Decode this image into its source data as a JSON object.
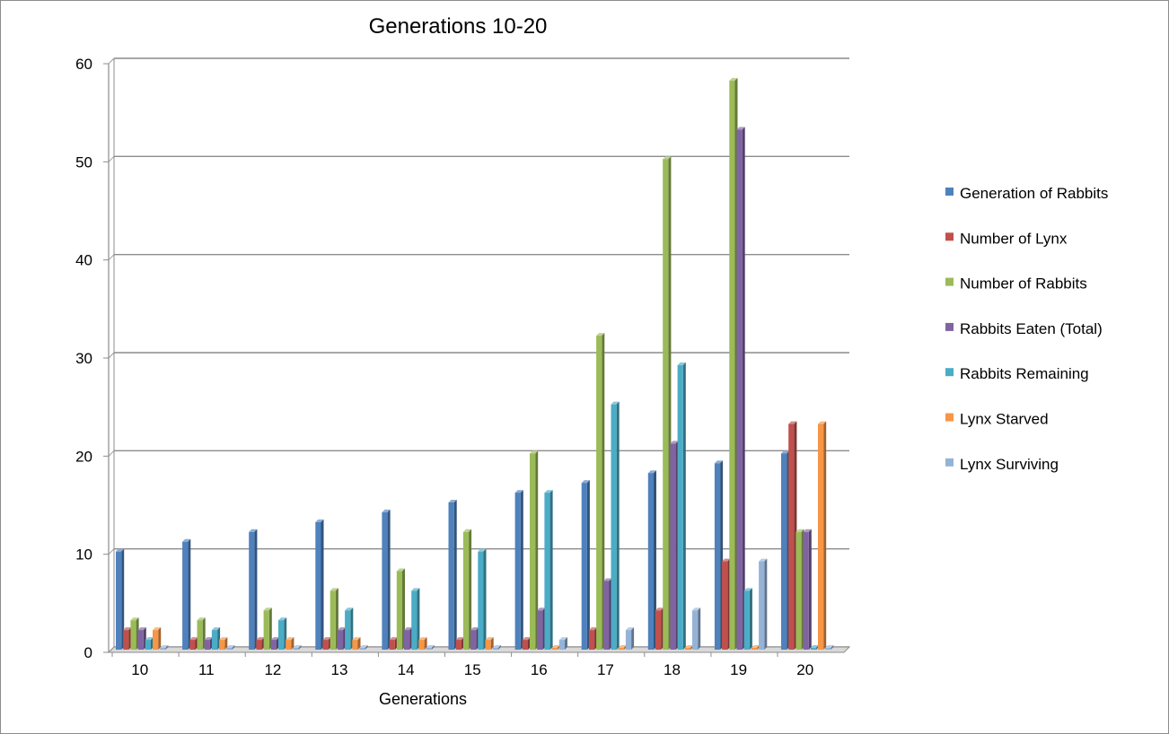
{
  "chart_data": {
    "type": "bar",
    "title": "Generations   10-20",
    "xlabel": "Generations",
    "ylabel": "",
    "ylim": [
      0,
      60
    ],
    "yticks": [
      0,
      10,
      20,
      30,
      40,
      50,
      60
    ],
    "grid": true,
    "legend_position": "right",
    "categories": [
      "10",
      "11",
      "12",
      "13",
      "14",
      "15",
      "16",
      "17",
      "18",
      "19",
      "20"
    ],
    "series": [
      {
        "name": "Generation of Rabbits",
        "color": "#4F81BD",
        "values": [
          10,
          11,
          12,
          13,
          14,
          15,
          16,
          17,
          18,
          19,
          20
        ]
      },
      {
        "name": "Number of Lynx",
        "color": "#C0504D",
        "values": [
          2,
          1,
          1,
          1,
          1,
          1,
          1,
          2,
          4,
          9,
          23
        ]
      },
      {
        "name": "Number of Rabbits",
        "color": "#9BBB59",
        "values": [
          3,
          3,
          4,
          6,
          8,
          12,
          20,
          32,
          50,
          58,
          12
        ]
      },
      {
        "name": "Rabbits Eaten (Total)",
        "color": "#8064A2",
        "values": [
          2,
          1,
          1,
          2,
          2,
          2,
          4,
          7,
          21,
          53,
          12
        ]
      },
      {
        "name": "Rabbits Remaining",
        "color": "#4BACC6",
        "values": [
          1,
          2,
          3,
          4,
          6,
          10,
          16,
          25,
          29,
          6,
          0
        ]
      },
      {
        "name": "Lynx Starved",
        "color": "#F79646",
        "values": [
          2,
          1,
          1,
          1,
          1,
          1,
          0,
          0,
          0,
          0,
          23
        ]
      },
      {
        "name": "Lynx Surviving",
        "color": "#95B3D7",
        "values": [
          0,
          0,
          0,
          0,
          0,
          0,
          1,
          2,
          4,
          9,
          0
        ]
      }
    ]
  }
}
